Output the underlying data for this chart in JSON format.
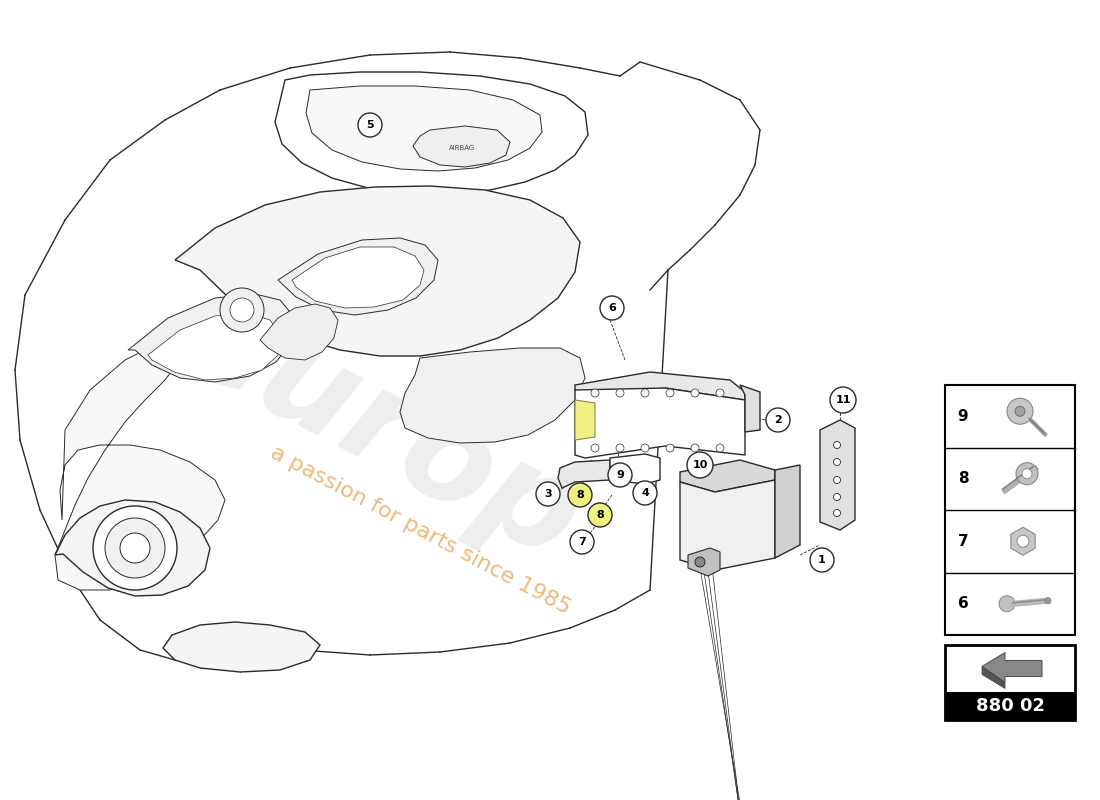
{
  "bg_color": "#ffffff",
  "line_color": "#2a2a2a",
  "part_code": "880 02",
  "watermark_color": "#d4d4d4",
  "watermark_text": "europ",
  "watermark_subtext": "a passion for parts since 1985",
  "orange_color": "#e8a050",
  "yellow_color": "#f0f080",
  "gray_color": "#aaaaaa",
  "panel_items": [
    {
      "num": "9",
      "type": "bolt_round"
    },
    {
      "num": "8",
      "type": "bolt_screw"
    },
    {
      "num": "7",
      "type": "nut_hex"
    },
    {
      "num": "6",
      "type": "pin"
    }
  ]
}
